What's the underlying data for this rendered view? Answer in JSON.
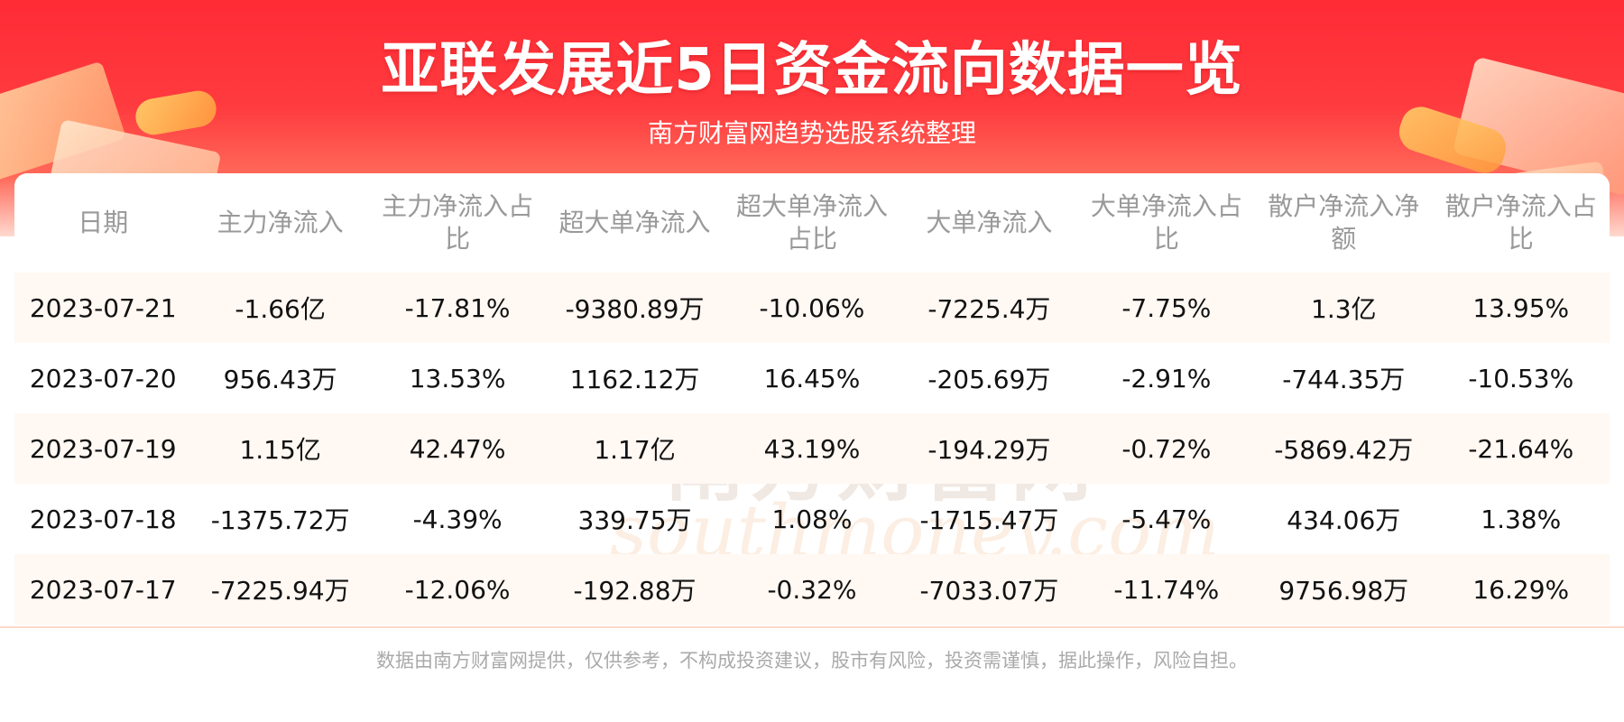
{
  "header": {
    "title": "亚联发展近5日资金流向数据一览",
    "subtitle": "南方财富网趋势选股系统整理"
  },
  "watermark": {
    "cn": "南方财富网",
    "en": "southmoney.com"
  },
  "table": {
    "columns": [
      "日期",
      "主力净流入",
      "主力净流入占比",
      "超大单净流入",
      "超大单净流入占比",
      "大单净流入",
      "大单净流入占比",
      "散户净流入净额",
      "散户净流入占比"
    ],
    "rows": [
      [
        "2023-07-21",
        "-1.66亿",
        "-17.81%",
        "-9380.89万",
        "-10.06%",
        "-7225.4万",
        "-7.75%",
        "1.3亿",
        "13.95%"
      ],
      [
        "2023-07-20",
        "956.43万",
        "13.53%",
        "1162.12万",
        "16.45%",
        "-205.69万",
        "-2.91%",
        "-744.35万",
        "-10.53%"
      ],
      [
        "2023-07-19",
        "1.15亿",
        "42.47%",
        "1.17亿",
        "43.19%",
        "-194.29万",
        "-0.72%",
        "-5869.42万",
        "-21.64%"
      ],
      [
        "2023-07-18",
        "-1375.72万",
        "-4.39%",
        "339.75万",
        "1.08%",
        "-1715.47万",
        "-5.47%",
        "434.06万",
        "1.38%"
      ],
      [
        "2023-07-17",
        "-7225.94万",
        "-12.06%",
        "-192.88万",
        "-0.32%",
        "-7033.07万",
        "-11.74%",
        "9756.98万",
        "16.29%"
      ]
    ]
  },
  "footer": {
    "disclaimer": "数据由南方财富网提供，仅供参考，不构成投资建议，股市有风险，投资需谨慎，据此操作，风险自担。"
  },
  "colors": {
    "banner_red": "#ff2b36",
    "stripe": "#fff8f3",
    "header_text": "#999999",
    "footer_text": "#aaaaaa"
  }
}
